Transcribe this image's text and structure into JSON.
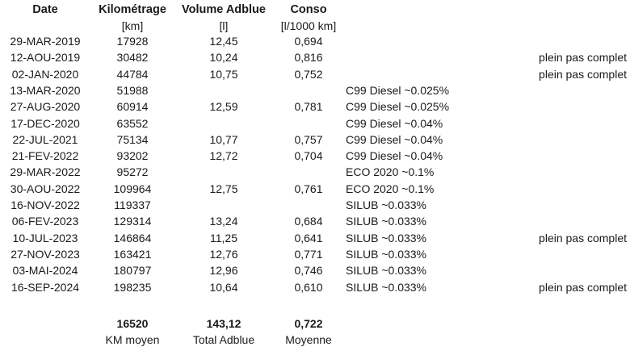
{
  "headers": {
    "date": "Date",
    "km": "Kilométrage",
    "volume": "Volume Adblue",
    "conso": "Conso"
  },
  "units": {
    "km": "[km]",
    "volume": "[l]",
    "conso": "[l/1000 km]"
  },
  "rows": [
    {
      "date": "29-MAR-2019",
      "km": "17928",
      "volume": "12,45",
      "conso": "0,694",
      "additive": "",
      "note": ""
    },
    {
      "date": "12-AOU-2019",
      "km": "30482",
      "volume": "10,24",
      "conso": "0,816",
      "additive": "",
      "note": "plein pas complet"
    },
    {
      "date": "02-JAN-2020",
      "km": "44784",
      "volume": "10,75",
      "conso": "0,752",
      "additive": "",
      "note": "plein pas complet"
    },
    {
      "date": "13-MAR-2020",
      "km": "51988",
      "volume": "",
      "conso": "",
      "additive": "C99 Diesel ~0.025%",
      "note": ""
    },
    {
      "date": "27-AUG-2020",
      "km": "60914",
      "volume": "12,59",
      "conso": "0,781",
      "additive": "C99 Diesel ~0.025%",
      "note": ""
    },
    {
      "date": "17-DEC-2020",
      "km": "63552",
      "volume": "",
      "conso": "",
      "additive": "C99 Diesel ~0.04%",
      "note": ""
    },
    {
      "date": "22-JUL-2021",
      "km": "75134",
      "volume": "10,77",
      "conso": "0,757",
      "additive": "C99 Diesel ~0.04%",
      "note": ""
    },
    {
      "date": "21-FEV-2022",
      "km": "93202",
      "volume": "12,72",
      "conso": "0,704",
      "additive": "C99 Diesel ~0.04%",
      "note": ""
    },
    {
      "date": "29-MAR-2022",
      "km": "95272",
      "volume": "",
      "conso": "",
      "additive": "ECO 2020 ~0.1%",
      "note": ""
    },
    {
      "date": "30-AOU-2022",
      "km": "109964",
      "volume": "12,75",
      "conso": "0,761",
      "additive": "ECO 2020 ~0.1%",
      "note": ""
    },
    {
      "date": "16-NOV-2022",
      "km": "119337",
      "volume": "",
      "conso": "",
      "additive": "SILUB ~0.033%",
      "note": ""
    },
    {
      "date": "06-FEV-2023",
      "km": "129314",
      "volume": "13,24",
      "conso": "0,684",
      "additive": "SILUB ~0.033%",
      "note": ""
    },
    {
      "date": "10-JUL-2023",
      "km": "146864",
      "volume": "11,25",
      "conso": "0,641",
      "additive": "SILUB ~0.033%",
      "note": "plein pas complet"
    },
    {
      "date": "27-NOV-2023",
      "km": "163421",
      "volume": "12,76",
      "conso": "0,771",
      "additive": "SILUB ~0.033%",
      "note": ""
    },
    {
      "date": "03-MAI-2024",
      "km": "180797",
      "volume": "12,96",
      "conso": "0,746",
      "additive": "SILUB ~0.033%",
      "note": ""
    },
    {
      "date": "16-SEP-2024",
      "km": "198235",
      "volume": "10,64",
      "conso": "0,610",
      "additive": "SILUB ~0.033%",
      "note": "plein pas complet"
    }
  ],
  "totals": {
    "km": "16520",
    "volume": "143,12",
    "conso": "0,722"
  },
  "total_labels": {
    "km": "KM moyen",
    "volume": "Total Adblue",
    "conso": "Moyenne"
  }
}
